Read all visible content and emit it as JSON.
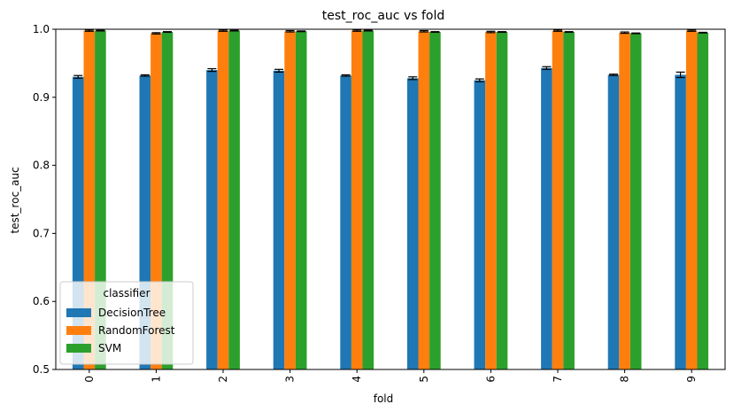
{
  "chart_data": {
    "type": "bar",
    "title": "test_roc_auc vs fold",
    "xlabel": "fold",
    "ylabel": "test_roc_auc",
    "ylim": [
      0.5,
      1.0
    ],
    "yticks": [
      "0.5",
      "0.6",
      "0.7",
      "0.8",
      "0.9",
      "1.0"
    ],
    "categories": [
      "0",
      "1",
      "2",
      "3",
      "4",
      "5",
      "6",
      "7",
      "8",
      "9"
    ],
    "legend": {
      "title": "classifier",
      "placement": "lower-left"
    },
    "grid": false,
    "series": [
      {
        "name": "DecisionTree",
        "color": "#1f77b4",
        "values": [
          0.93,
          0.932,
          0.94,
          0.939,
          0.932,
          0.928,
          0.925,
          0.943,
          0.933,
          0.933
        ],
        "errors": [
          0.002,
          0.001,
          0.002,
          0.002,
          0.001,
          0.002,
          0.002,
          0.002,
          0.001,
          0.004
        ]
      },
      {
        "name": "RandomForest",
        "color": "#ff7f0e",
        "values": [
          0.998,
          0.994,
          0.998,
          0.997,
          0.998,
          0.997,
          0.996,
          0.998,
          0.995,
          0.998
        ],
        "errors": [
          0.001,
          0.001,
          0.001,
          0.001,
          0.001,
          0.001,
          0.001,
          0.001,
          0.001,
          0.001
        ]
      },
      {
        "name": "SVM",
        "color": "#2ca02c",
        "values": [
          0.998,
          0.996,
          0.998,
          0.997,
          0.998,
          0.996,
          0.996,
          0.996,
          0.994,
          0.995
        ],
        "errors": [
          0.0005,
          0.0005,
          0.0005,
          0.0005,
          0.0005,
          0.0005,
          0.0005,
          0.0005,
          0.0005,
          0.0005
        ]
      }
    ]
  }
}
